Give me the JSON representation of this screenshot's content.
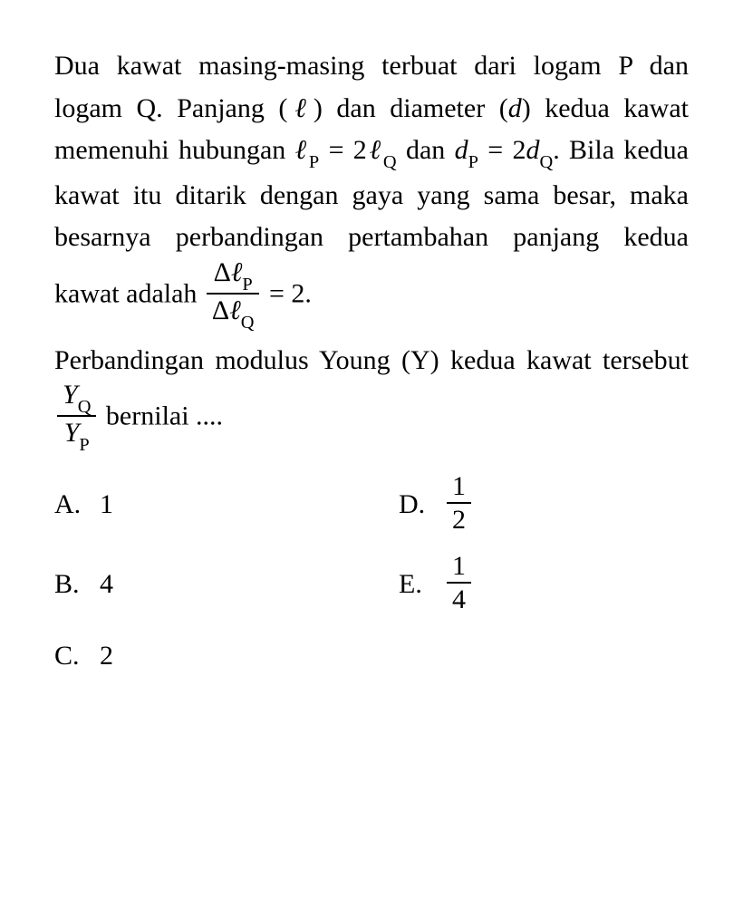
{
  "question": {
    "line1_pre": "Dua kawat masing-masing terbuat dari logam P dan logam Q. Panjang (",
    "ell": "ℓ",
    "line1_mid1": ") dan diameter (",
    "d": "d",
    "line1_mid2": ") kedua kawat memenuhi hubungan ",
    "ellP": "ℓ",
    "subP": "P",
    "eq": " = 2",
    "ellQ": "ℓ",
    "subQ": "Q",
    "dan": " dan ",
    "dP": "d",
    "eq2": " = 2",
    "dQ": "d",
    "line1_post": ". Bila kedua kawat itu ditarik dengan gaya yang sama besar, maka besarnya perbandingan pertambahan panjang kedua kawat adalah ",
    "delta": "Δ",
    "eq3": " = 2.",
    "line2_pre": "Perbandingan modulus Young (Y) kedua kawat tersebut ",
    "Y": "Y",
    "line2_post": " bernilai ...."
  },
  "answers": {
    "A": {
      "label": "A.",
      "value": "1"
    },
    "B": {
      "label": "B.",
      "value": "4"
    },
    "C": {
      "label": "C.",
      "value": "2"
    },
    "D": {
      "label": "D.",
      "num": "1",
      "den": "2"
    },
    "E": {
      "label": "E.",
      "num": "1",
      "den": "4"
    }
  },
  "style": {
    "text_color": "#000000",
    "background_color": "#ffffff",
    "font_size_pt": 22,
    "font_family": "Georgia, Times New Roman, serif"
  }
}
